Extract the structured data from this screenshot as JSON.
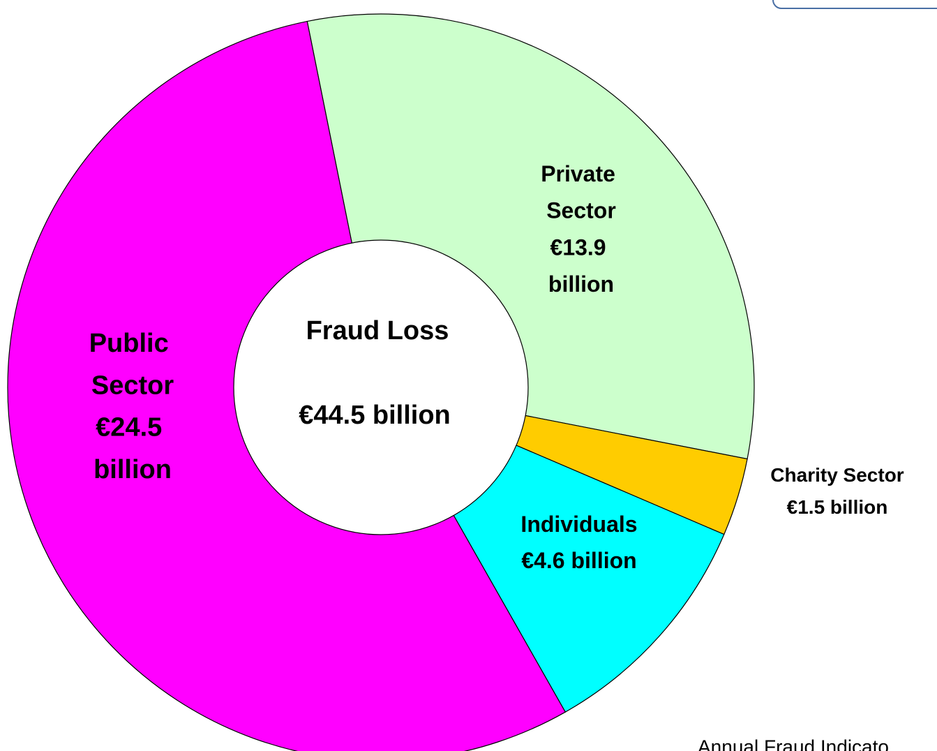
{
  "chart_data": {
    "type": "donut",
    "categories": [
      "Private Sector",
      "Charity Sector",
      "Individuals",
      "Public Sector"
    ],
    "values": [
      13.9,
      1.5,
      4.6,
      24.5
    ],
    "value_labels": [
      "€13.9 billion",
      "€1.5 billion",
      "€4.6 billion",
      "€24.5 billion"
    ],
    "colors": [
      "#ccffcc",
      "#ffcc00",
      "#00ffff",
      "#ff00ff"
    ],
    "center_text": [
      "Fraud Loss",
      "€44.5 billion"
    ],
    "source": "Annual Fraud Indicato"
  }
}
